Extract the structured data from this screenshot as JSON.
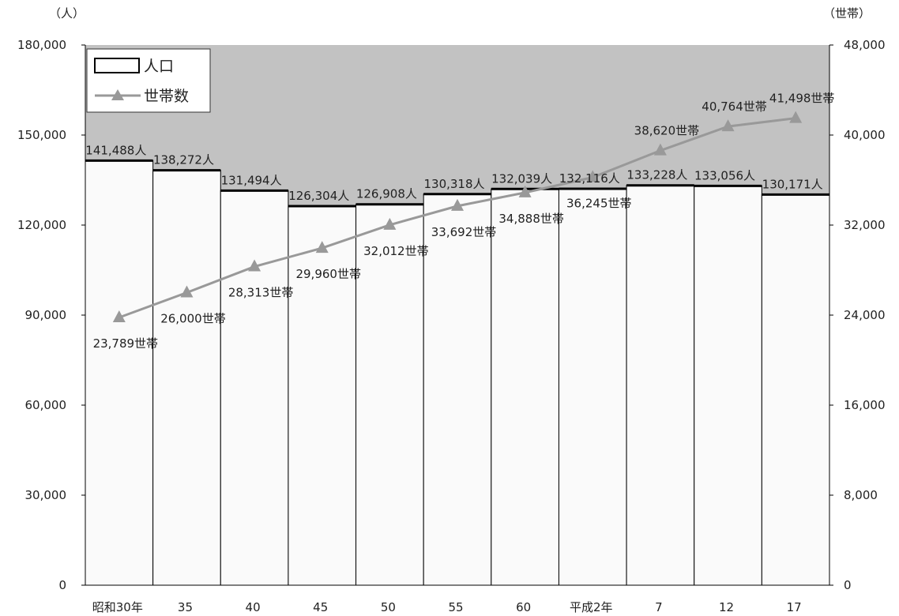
{
  "chart_data": {
    "type": "bar",
    "title": "",
    "left_axis_unit": "（人）",
    "right_axis_unit": "（世帯）",
    "categories": [
      "昭和30年",
      "35",
      "40",
      "45",
      "50",
      "55",
      "60",
      "平成2年",
      "7",
      "12",
      "17"
    ],
    "ylim_left": [
      0,
      180000
    ],
    "ylim_right": [
      0,
      48000
    ],
    "left_ticks": [
      "0",
      "30,000",
      "60,000",
      "90,000",
      "120,000",
      "150,000",
      "180,000"
    ],
    "right_ticks": [
      "0",
      "8,000",
      "16,000",
      "24,000",
      "32,000",
      "40,000",
      "48,000"
    ],
    "grid": false,
    "legend_position": "top-left",
    "plot_background": "#c2c2c2",
    "series": [
      {
        "name": "人口",
        "kind": "bar",
        "axis": "left",
        "color": "#fafafa",
        "values": [
          141488,
          138272,
          131494,
          126304,
          126908,
          130318,
          132039,
          132116,
          133228,
          133056,
          130171
        ],
        "labels": [
          "141,488人",
          "138,272人",
          "131,494人",
          "126,304人",
          "126,908人",
          "130,318人",
          "132,039人",
          "132,116人",
          "133,228人",
          "133,056人",
          "130,171人"
        ]
      },
      {
        "name": "世帯数",
        "kind": "line",
        "axis": "right",
        "color": "#999999",
        "values": [
          23789,
          26000,
          28313,
          29960,
          32012,
          33692,
          34888,
          36245,
          38620,
          40764,
          41498
        ],
        "labels": [
          "23,789世帯",
          "26,000世帯",
          "28,313世帯",
          "29,960世帯",
          "32,012世帯",
          "33,692世帯",
          "34,888世帯",
          "36,245世帯",
          "38,620世帯",
          "40,764世帯",
          "41,498世帯"
        ]
      }
    ]
  }
}
